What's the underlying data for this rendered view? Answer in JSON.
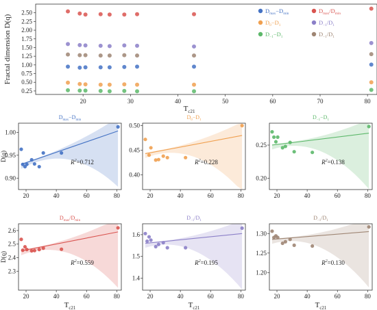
{
  "chart_data": [
    {
      "type": "scatter",
      "id": "top",
      "xlabel": "T",
      "xlabel_sub": "c21",
      "ylabel": "Fractal dimension D(q)",
      "xlim": [
        10,
        82
      ],
      "ylim": [
        0.15,
        2.75
      ],
      "xticks": [
        "20",
        "30",
        "40",
        "50",
        "60",
        "70",
        "80"
      ],
      "yticks": [
        "0.25",
        "0.50",
        "0.75",
        "1.00",
        "1.25",
        "1.50",
        "1.75",
        "2.00",
        "2.25",
        "2.50"
      ],
      "x": [
        16.8,
        19.3,
        20.5,
        23.7,
        25.6,
        28.7,
        31.4,
        43.4,
        80.8
      ],
      "legend_position": "top-right",
      "series": [
        {
          "name": "D_max−D_min",
          "name_main": "D",
          "name_sub": "max",
          "name_mid": "−D",
          "name_sub2": "min",
          "color": "#4472c4",
          "values": [
            0.95,
            0.92,
            0.93,
            0.93,
            0.93,
            0.94,
            0.95,
            0.95,
            1.01
          ]
        },
        {
          "name": "D_max/D_min",
          "name_main": "D",
          "name_sub": "max",
          "name_mid": "/D",
          "name_sub2": "min",
          "color": "#d9534f",
          "values": [
            2.54,
            2.48,
            2.45,
            2.46,
            2.45,
            2.45,
            2.46,
            2.46,
            2.62
          ]
        },
        {
          "name": "D_0−D_1",
          "name_main": "D",
          "name_sub": "0",
          "name_mid": "−D",
          "name_sub2": "1",
          "color": "#f0a050",
          "values": [
            0.49,
            0.45,
            0.44,
            0.43,
            0.43,
            0.44,
            0.43,
            0.43,
            0.5
          ]
        },
        {
          "name": "D_−1/D_1",
          "name_main": "D",
          "name_sub": "−1",
          "name_mid": "/D",
          "name_sub2": "1",
          "color": "#8b7fc8",
          "values": [
            1.6,
            1.57,
            1.56,
            1.55,
            1.54,
            1.56,
            1.55,
            1.53,
            1.63
          ]
        },
        {
          "name": "D_−1−D_1",
          "name_main": "D",
          "name_sub": "−1",
          "name_mid": "−D",
          "name_sub2": "1",
          "color": "#5cb86a",
          "values": [
            0.27,
            0.26,
            0.26,
            0.25,
            0.24,
            0.25,
            0.24,
            0.24,
            0.28
          ]
        },
        {
          "name": "D_−1/D_1",
          "name_main": "D",
          "name_sub": "−1",
          "name_mid": "/D",
          "name_sub2": "1",
          "color": "#9e8573",
          "values": [
            1.3,
            1.28,
            1.28,
            1.27,
            1.27,
            1.28,
            1.27,
            1.27,
            1.31
          ]
        }
      ]
    },
    {
      "type": "scatter",
      "id": "p1",
      "title_main": "D",
      "title_sub": "max",
      "title_mid": "−D",
      "title_sub2": "min",
      "color": "#4472c4",
      "ylabel": "D(q)",
      "xlabel": "",
      "xlabel_sub": "",
      "xlim": [
        15,
        83
      ],
      "ylim": [
        0.875,
        1.02
      ],
      "xticks": [
        "20",
        "40",
        "60",
        "80"
      ],
      "yticks": [
        "0.90",
        "0.95",
        "1.00"
      ],
      "r2": "0.712",
      "x": [
        16.8,
        17.8,
        19.3,
        20.5,
        23.7,
        25.6,
        28.7,
        31.4,
        43.4,
        80.8
      ],
      "y": [
        0.963,
        0.93,
        0.925,
        0.93,
        0.94,
        0.931,
        0.925,
        0.955,
        0.955,
        1.012
      ],
      "fit": [
        0.93,
        1.003
      ]
    },
    {
      "type": "scatter",
      "id": "p2",
      "title_main": "D",
      "title_sub": "0",
      "title_mid": "−D",
      "title_sub2": "1",
      "color": "#f0a050",
      "ylabel": "",
      "xlabel": "",
      "xlabel_sub": "",
      "xlim": [
        15,
        83
      ],
      "ylim": [
        0.37,
        0.505
      ],
      "xticks": [
        "20",
        "40",
        "60",
        "80"
      ],
      "yticks": [
        "0.40",
        "0.45",
        "0.50"
      ],
      "r2": "0.228",
      "x": [
        16.8,
        19.3,
        20.5,
        23.7,
        25.6,
        28.7,
        31.4,
        43.4,
        80.8
      ],
      "y": [
        0.472,
        0.44,
        0.455,
        0.43,
        0.431,
        0.438,
        0.435,
        0.435,
        0.5
      ],
      "fit": [
        0.443,
        0.48
      ]
    },
    {
      "type": "scatter",
      "id": "p3",
      "title_main": "D",
      "title_sub": "−1",
      "title_mid": "−D",
      "title_sub2": "1",
      "color": "#5cb86a",
      "ylabel": "",
      "xlabel": "",
      "xlabel_sub": "",
      "xlim": [
        15,
        83
      ],
      "ylim": [
        0.183,
        0.283
      ],
      "xticks": [
        "20",
        "40",
        "60",
        "80"
      ],
      "yticks": [
        "0.20",
        "0.25"
      ],
      "r2": "0.138",
      "x": [
        16.8,
        18.0,
        19.3,
        20.5,
        23.7,
        25.6,
        28.7,
        31.4,
        43.4,
        80.8
      ],
      "y": [
        0.27,
        0.262,
        0.255,
        0.262,
        0.246,
        0.248,
        0.254,
        0.24,
        0.239,
        0.278
      ],
      "fit": [
        0.25,
        0.268
      ]
    },
    {
      "type": "scatter",
      "id": "p4",
      "title_main": "D",
      "title_sub": "max",
      "title_mid": "/D",
      "title_sub2": "min",
      "color": "#d9534f",
      "ylabel": "D(q)",
      "xlabel": "T",
      "xlabel_sub": "c21",
      "xlim": [
        15,
        83
      ],
      "ylim": [
        2.16,
        2.65
      ],
      "xticks": [
        "20",
        "40",
        "60",
        "80"
      ],
      "yticks": [
        "2.3",
        "2.4",
        "2.5",
        "2.6"
      ],
      "r2": "0.559",
      "x": [
        16.8,
        17.8,
        19.3,
        20.5,
        23.7,
        25.6,
        28.7,
        31.4,
        43.4,
        80.8
      ],
      "y": [
        2.535,
        2.455,
        2.48,
        2.46,
        2.45,
        2.452,
        2.46,
        2.47,
        2.462,
        2.62
      ],
      "fit": [
        2.45,
        2.59
      ]
    },
    {
      "type": "scatter",
      "id": "p5",
      "title_main": "D",
      "title_sub": "−1",
      "title_mid": "/D",
      "title_sub2": "1",
      "color": "#8b7fc8",
      "ylabel": "",
      "xlabel": "T",
      "xlabel_sub": "c21",
      "xlim": [
        15,
        83
      ],
      "ylim": [
        1.345,
        1.65
      ],
      "xticks": [
        "20",
        "40",
        "60",
        "80"
      ],
      "yticks": [
        "1.4",
        "1.5",
        "1.6"
      ],
      "r2": "0.195",
      "x": [
        16.8,
        18.0,
        19.3,
        20.5,
        23.7,
        25.6,
        28.7,
        31.4,
        43.4,
        80.8
      ],
      "y": [
        1.605,
        1.57,
        1.59,
        1.575,
        1.545,
        1.555,
        1.563,
        1.54,
        1.54,
        1.63
      ],
      "fit": [
        1.56,
        1.605
      ]
    },
    {
      "type": "scatter",
      "id": "p6",
      "title_main": "D",
      "title_sub": "−1",
      "title_mid": "/D",
      "title_sub2": "1",
      "color": "#9e8573",
      "ylabel": "",
      "xlabel": "T",
      "xlabel_sub": "c21",
      "xlim": [
        15,
        83
      ],
      "ylim": [
        1.155,
        1.325
      ],
      "xticks": [
        "20",
        "40",
        "60",
        "80"
      ],
      "yticks": [
        "1.20",
        "1.25",
        "1.30"
      ],
      "r2": "0.130",
      "x": [
        16.8,
        18.0,
        19.3,
        20.5,
        23.7,
        25.6,
        28.7,
        31.4,
        43.4,
        80.8
      ],
      "y": [
        1.306,
        1.29,
        1.294,
        1.29,
        1.275,
        1.279,
        1.285,
        1.27,
        1.268,
        1.317
      ],
      "fit": [
        1.285,
        1.305
      ]
    }
  ]
}
